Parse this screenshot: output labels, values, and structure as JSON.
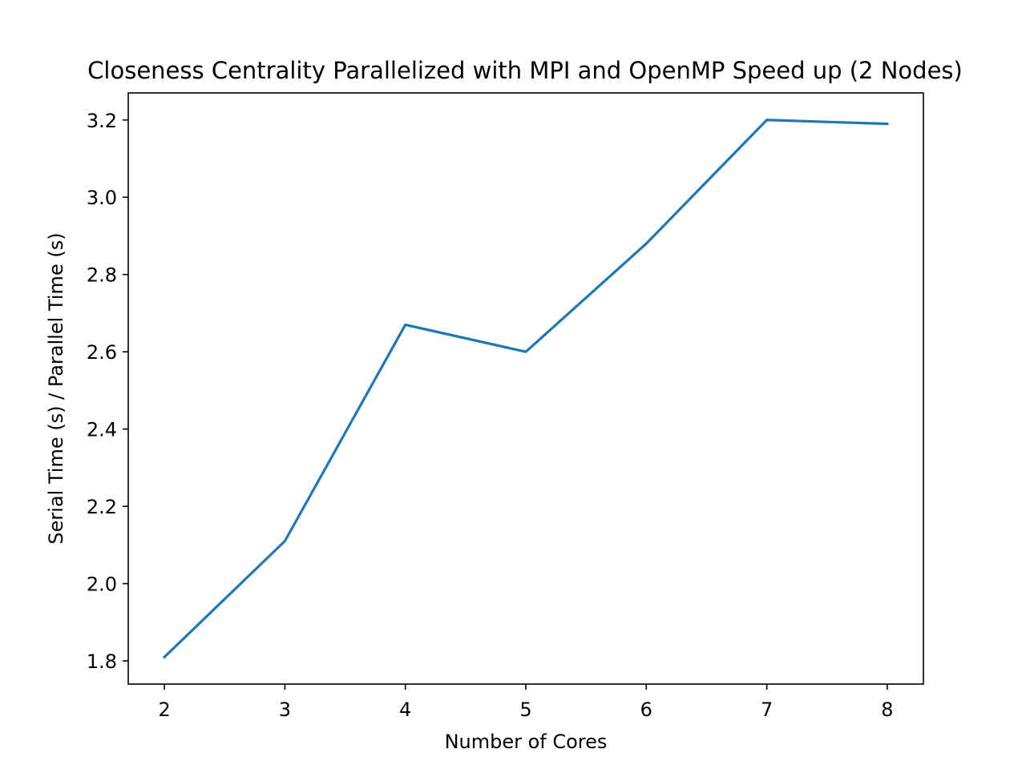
{
  "chart_data": {
    "type": "line",
    "title": "Closeness Centrality Parallelized with MPI and OpenMP Speed up (2 Nodes)",
    "xlabel": "Number of Cores",
    "ylabel": "Serial Time (s) / Parallel Time (s)",
    "x": [
      2,
      3,
      4,
      5,
      6,
      7,
      8
    ],
    "series": [
      {
        "values": [
          1.81,
          2.11,
          2.67,
          2.6,
          2.88,
          3.2,
          3.19
        ],
        "color": "#1f77b4"
      }
    ],
    "xlim": [
      1.7,
      8.3
    ],
    "ylim": [
      1.74,
      3.27
    ],
    "xticks": [
      2,
      3,
      4,
      5,
      6,
      7,
      8
    ],
    "xtick_labels": [
      "2",
      "3",
      "4",
      "5",
      "6",
      "7",
      "8"
    ],
    "yticks": [
      1.8,
      2.0,
      2.2,
      2.4,
      2.6,
      2.8,
      3.0,
      3.2
    ],
    "ytick_labels": [
      "1.8",
      "2.0",
      "2.2",
      "2.4",
      "2.6",
      "2.8",
      "3.0",
      "3.2"
    ],
    "grid": false,
    "legend": "none"
  }
}
